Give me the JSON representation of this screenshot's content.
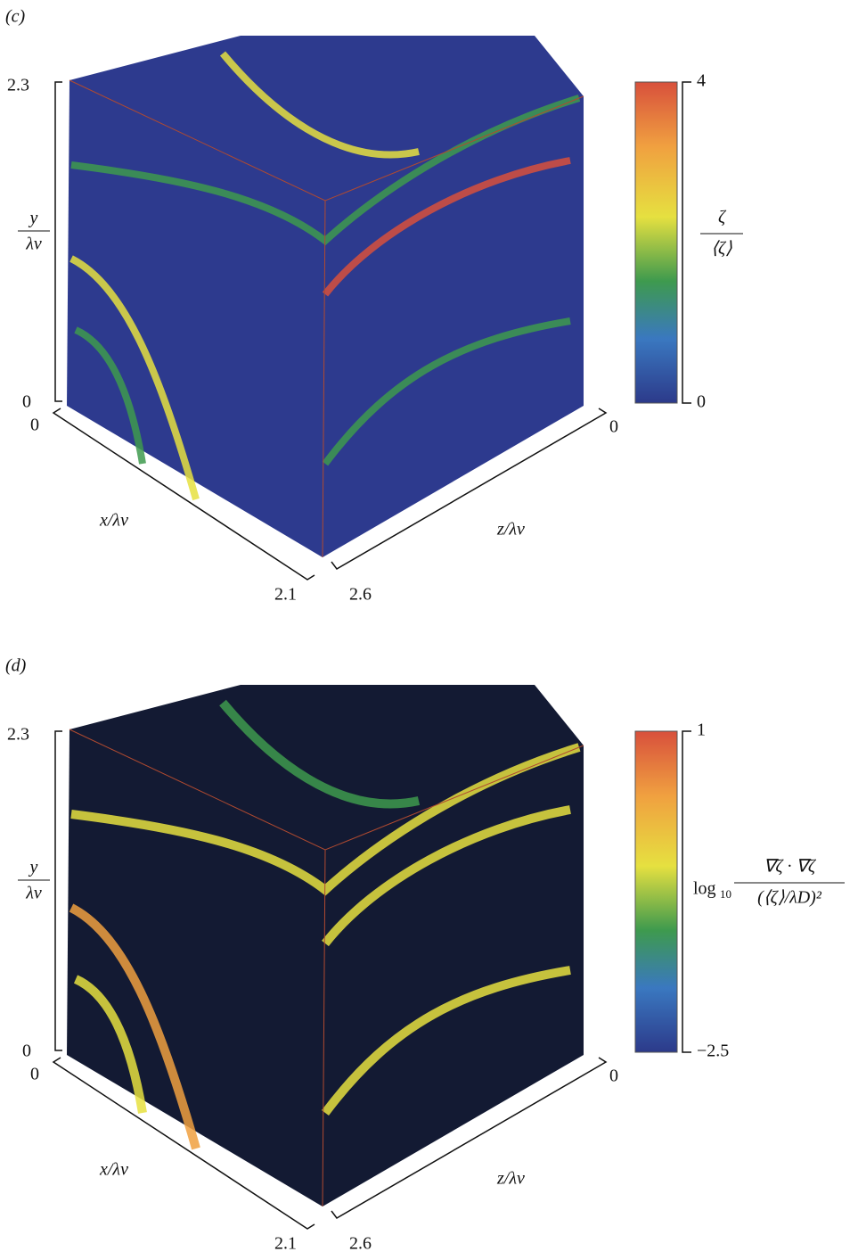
{
  "panels": [
    {
      "label": "(c)",
      "y_axis": {
        "numerator": "y",
        "denominator": "λν",
        "ticks": [
          "2.3",
          "0"
        ]
      },
      "x_axis": {
        "label": "x/λν",
        "ticks": [
          "0",
          "2.1"
        ]
      },
      "z_axis": {
        "label": "z/λν",
        "ticks": [
          "0",
          "2.6"
        ]
      },
      "colorbar": {
        "numerator": "ζ",
        "denominator": "⟨ζ⟩",
        "ticks": [
          "4",
          "0"
        ]
      }
    },
    {
      "label": "(d)",
      "y_axis": {
        "numerator": "y",
        "denominator": "λν",
        "ticks": [
          "2.3",
          "0"
        ]
      },
      "x_axis": {
        "label": "x/λν",
        "ticks": [
          "0",
          "2.1"
        ]
      },
      "z_axis": {
        "label": "z/λν",
        "ticks": [
          "0",
          "2.6"
        ]
      },
      "colorbar": {
        "prefix": "log",
        "prefix_subscript": "10",
        "numerator": "∇ζ · ∇ζ",
        "denominator": "(⟨ζ⟩/λD)²",
        "ticks": [
          "1",
          "−2.5"
        ]
      }
    }
  ]
}
